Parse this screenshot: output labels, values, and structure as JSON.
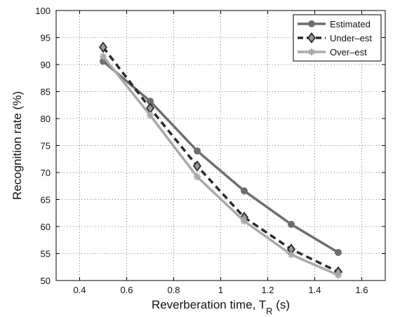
{
  "chart_data": {
    "type": "line",
    "xlabel": "Reverberation time, T",
    "xlabel_subscript": "R",
    "xlabel_suffix": " (s)",
    "ylabel": "Recognition rate (%)",
    "xlim": [
      0.3,
      1.7
    ],
    "ylim": [
      50,
      100
    ],
    "xticks": [
      0.4,
      0.6,
      0.8,
      1,
      1.2,
      1.4,
      1.6
    ],
    "xtick_labels": [
      "0.4",
      "0.6",
      "0.8",
      "1",
      "1.2",
      "1.4",
      "1.6"
    ],
    "yticks": [
      50,
      55,
      60,
      65,
      70,
      75,
      80,
      85,
      90,
      95,
      100
    ],
    "ytick_labels": [
      "50",
      "55",
      "60",
      "65",
      "70",
      "75",
      "80",
      "85",
      "90",
      "95",
      "100"
    ],
    "grid": true,
    "legend_position": "top-right",
    "x": [
      0.5,
      0.7,
      0.9,
      1.1,
      1.3,
      1.5
    ],
    "series": [
      {
        "name": "Estimated",
        "values": [
          90.6,
          83.2,
          74.0,
          66.6,
          60.4,
          55.2
        ],
        "color": "#6e6e6e",
        "dash": "solid",
        "marker": "circle"
      },
      {
        "name": "Under–est",
        "values": [
          93.2,
          81.9,
          71.2,
          61.7,
          55.8,
          51.6
        ],
        "color": "#2b2b2b",
        "dash": "dashed",
        "marker": "diamond"
      },
      {
        "name": "Over–est",
        "values": [
          91.5,
          80.6,
          69.2,
          61.0,
          54.8,
          51.0
        ],
        "color": "#a9a9a9",
        "dash": "solid",
        "marker": "star"
      }
    ]
  }
}
